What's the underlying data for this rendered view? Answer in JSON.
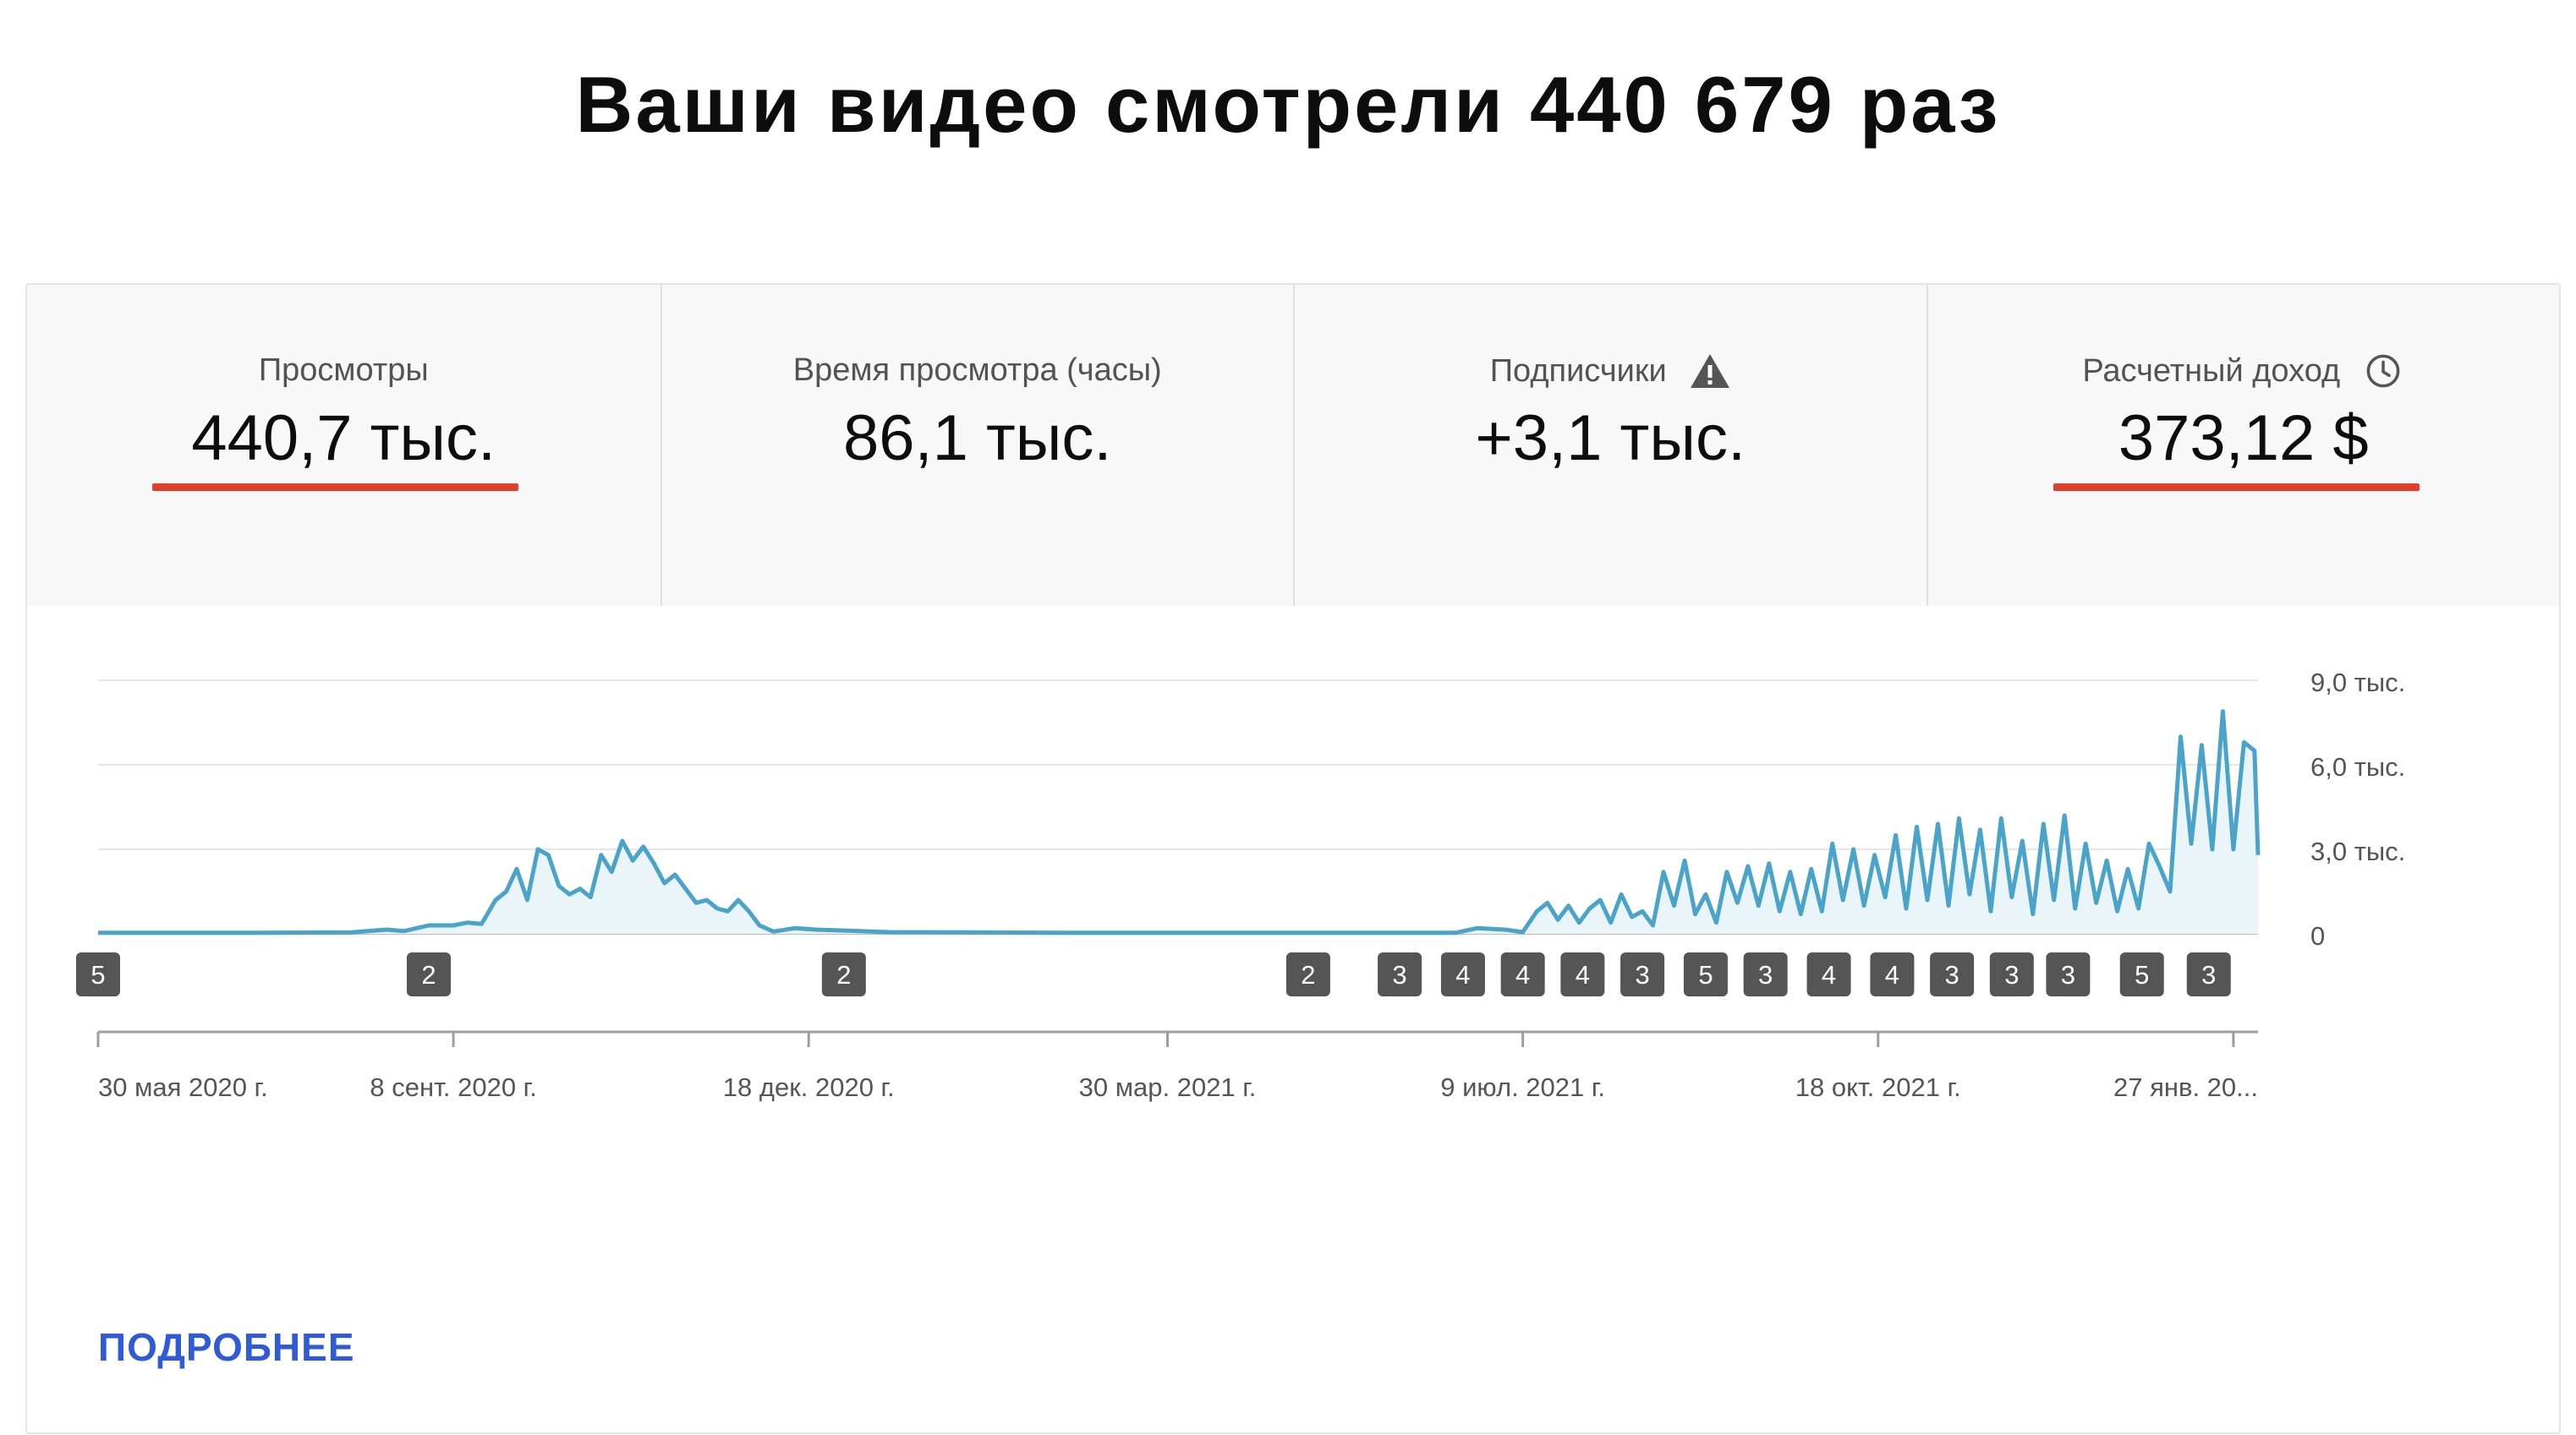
{
  "page": {
    "title": "Ваши видео смотрели 440 679 раз"
  },
  "tabs": [
    {
      "label": "Просмотры",
      "value": "440,7 тыс.",
      "icon": "",
      "active": true,
      "underline": true
    },
    {
      "label": "Время просмотра (часы)",
      "value": "86,1 тыс.",
      "icon": "",
      "active": false,
      "underline": false
    },
    {
      "label": "Подписчики",
      "value": "+3,1 тыс.",
      "icon": "warning-icon",
      "active": false,
      "underline": false
    },
    {
      "label": "Расчетный доход",
      "value": "373,12 $",
      "icon": "clock-icon",
      "active": false,
      "underline": true
    }
  ],
  "colors": {
    "accent": "#2f5bd6",
    "underline": "#e0402e",
    "line": "#4aa3c8",
    "fill": "#eaf5f9"
  },
  "chart_data": {
    "type": "area",
    "y_ticks": [
      {
        "value": 0,
        "label": "0"
      },
      {
        "value": 3000,
        "label": "3,0 тыс."
      },
      {
        "value": 6000,
        "label": "6,0 тыс."
      },
      {
        "value": 9000,
        "label": "9,0 тыс."
      }
    ],
    "ylim": [
      0,
      9000
    ],
    "x_range": [
      "2020-05-30",
      "2022-02-03"
    ],
    "x_ticks": [
      {
        "date": "2020-05-30",
        "label": "30 мая 2020 г."
      },
      {
        "date": "2020-09-08",
        "label": "8 сент. 2020 г."
      },
      {
        "date": "2020-12-18",
        "label": "18 дек. 2020 г."
      },
      {
        "date": "2021-03-30",
        "label": "30 мар. 2021 г."
      },
      {
        "date": "2021-07-09",
        "label": "9 июл. 2021 г."
      },
      {
        "date": "2021-10-18",
        "label": "18 окт. 2021 г."
      },
      {
        "date": "2022-01-27",
        "label": "27 янв. 20..."
      }
    ],
    "series": [
      {
        "points": [
          [
            "2020-05-30",
            40
          ],
          [
            "2020-07-15",
            40
          ],
          [
            "2020-08-10",
            50
          ],
          [
            "2020-08-20",
            150
          ],
          [
            "2020-08-25",
            100
          ],
          [
            "2020-09-01",
            300
          ],
          [
            "2020-09-08",
            300
          ],
          [
            "2020-09-12",
            400
          ],
          [
            "2020-09-16",
            350
          ],
          [
            "2020-09-20",
            1200
          ],
          [
            "2020-09-23",
            1500
          ],
          [
            "2020-09-26",
            2300
          ],
          [
            "2020-09-29",
            1200
          ],
          [
            "2020-10-02",
            3000
          ],
          [
            "2020-10-05",
            2800
          ],
          [
            "2020-10-08",
            1700
          ],
          [
            "2020-10-11",
            1400
          ],
          [
            "2020-10-14",
            1600
          ],
          [
            "2020-10-17",
            1300
          ],
          [
            "2020-10-20",
            2800
          ],
          [
            "2020-10-23",
            2200
          ],
          [
            "2020-10-26",
            3300
          ],
          [
            "2020-10-29",
            2600
          ],
          [
            "2020-11-01",
            3100
          ],
          [
            "2020-11-04",
            2500
          ],
          [
            "2020-11-07",
            1800
          ],
          [
            "2020-11-10",
            2100
          ],
          [
            "2020-11-13",
            1600
          ],
          [
            "2020-11-16",
            1100
          ],
          [
            "2020-11-19",
            1200
          ],
          [
            "2020-11-22",
            900
          ],
          [
            "2020-11-25",
            800
          ],
          [
            "2020-11-28",
            1200
          ],
          [
            "2020-12-01",
            800
          ],
          [
            "2020-12-04",
            300
          ],
          [
            "2020-12-08",
            80
          ],
          [
            "2020-12-14",
            200
          ],
          [
            "2020-12-20",
            150
          ],
          [
            "2021-01-10",
            60
          ],
          [
            "2021-03-01",
            40
          ],
          [
            "2021-06-20",
            40
          ],
          [
            "2021-06-26",
            200
          ],
          [
            "2021-07-04",
            150
          ],
          [
            "2021-07-09",
            60
          ],
          [
            "2021-07-13",
            800
          ],
          [
            "2021-07-16",
            1100
          ],
          [
            "2021-07-19",
            500
          ],
          [
            "2021-07-22",
            1000
          ],
          [
            "2021-07-25",
            400
          ],
          [
            "2021-07-28",
            900
          ],
          [
            "2021-07-31",
            1200
          ],
          [
            "2021-08-03",
            400
          ],
          [
            "2021-08-06",
            1400
          ],
          [
            "2021-08-09",
            600
          ],
          [
            "2021-08-12",
            800
          ],
          [
            "2021-08-15",
            300
          ],
          [
            "2021-08-18",
            2200
          ],
          [
            "2021-08-21",
            1000
          ],
          [
            "2021-08-24",
            2600
          ],
          [
            "2021-08-27",
            700
          ],
          [
            "2021-08-30",
            1400
          ],
          [
            "2021-09-02",
            400
          ],
          [
            "2021-09-05",
            2200
          ],
          [
            "2021-09-08",
            1100
          ],
          [
            "2021-09-11",
            2400
          ],
          [
            "2021-09-14",
            1000
          ],
          [
            "2021-09-17",
            2500
          ],
          [
            "2021-09-20",
            800
          ],
          [
            "2021-09-23",
            2200
          ],
          [
            "2021-09-26",
            700
          ],
          [
            "2021-09-29",
            2300
          ],
          [
            "2021-10-02",
            800
          ],
          [
            "2021-10-05",
            3200
          ],
          [
            "2021-10-08",
            1200
          ],
          [
            "2021-10-11",
            3000
          ],
          [
            "2021-10-14",
            1000
          ],
          [
            "2021-10-17",
            2800
          ],
          [
            "2021-10-20",
            1300
          ],
          [
            "2021-10-23",
            3500
          ],
          [
            "2021-10-26",
            900
          ],
          [
            "2021-10-29",
            3800
          ],
          [
            "2021-11-01",
            1200
          ],
          [
            "2021-11-04",
            3900
          ],
          [
            "2021-11-07",
            1000
          ],
          [
            "2021-11-10",
            4100
          ],
          [
            "2021-11-13",
            1400
          ],
          [
            "2021-11-16",
            3700
          ],
          [
            "2021-11-19",
            800
          ],
          [
            "2021-11-22",
            4100
          ],
          [
            "2021-11-25",
            1300
          ],
          [
            "2021-11-28",
            3300
          ],
          [
            "2021-12-01",
            700
          ],
          [
            "2021-12-04",
            3900
          ],
          [
            "2021-12-07",
            1200
          ],
          [
            "2021-12-10",
            4200
          ],
          [
            "2021-12-13",
            900
          ],
          [
            "2021-12-16",
            3200
          ],
          [
            "2021-12-19",
            1100
          ],
          [
            "2021-12-22",
            2600
          ],
          [
            "2021-12-25",
            800
          ],
          [
            "2021-12-28",
            2300
          ],
          [
            "2021-12-31",
            900
          ],
          [
            "2022-01-03",
            3200
          ],
          [
            "2022-01-06",
            2400
          ],
          [
            "2022-01-09",
            1500
          ],
          [
            "2022-01-12",
            7000
          ],
          [
            "2022-01-15",
            3200
          ],
          [
            "2022-01-18",
            6700
          ],
          [
            "2022-01-21",
            3000
          ],
          [
            "2022-01-24",
            7900
          ],
          [
            "2022-01-27",
            3000
          ],
          [
            "2022-01-30",
            6800
          ],
          [
            "2022-02-02",
            6500
          ],
          [
            "2022-02-03",
            2800
          ]
        ]
      }
    ],
    "annotation_badges": [
      {
        "date": "2020-05-30",
        "label": "5"
      },
      {
        "date": "2020-09-01",
        "label": "2"
      },
      {
        "date": "2020-12-28",
        "label": "2"
      },
      {
        "date": "2021-05-09",
        "label": "2"
      },
      {
        "date": "2021-06-04",
        "label": "3"
      },
      {
        "date": "2021-06-22",
        "label": "4"
      },
      {
        "date": "2021-07-09",
        "label": "4"
      },
      {
        "date": "2021-07-26",
        "label": "4"
      },
      {
        "date": "2021-08-12",
        "label": "3"
      },
      {
        "date": "2021-08-30",
        "label": "5"
      },
      {
        "date": "2021-09-16",
        "label": "3"
      },
      {
        "date": "2021-10-04",
        "label": "4"
      },
      {
        "date": "2021-10-22",
        "label": "4"
      },
      {
        "date": "2021-11-08",
        "label": "3"
      },
      {
        "date": "2021-11-25",
        "label": "3"
      },
      {
        "date": "2021-12-11",
        "label": "3"
      },
      {
        "date": "2022-01-01",
        "label": "5"
      },
      {
        "date": "2022-01-20",
        "label": "3"
      }
    ]
  },
  "footer": {
    "more_label": "ПОДРОБНЕЕ"
  }
}
